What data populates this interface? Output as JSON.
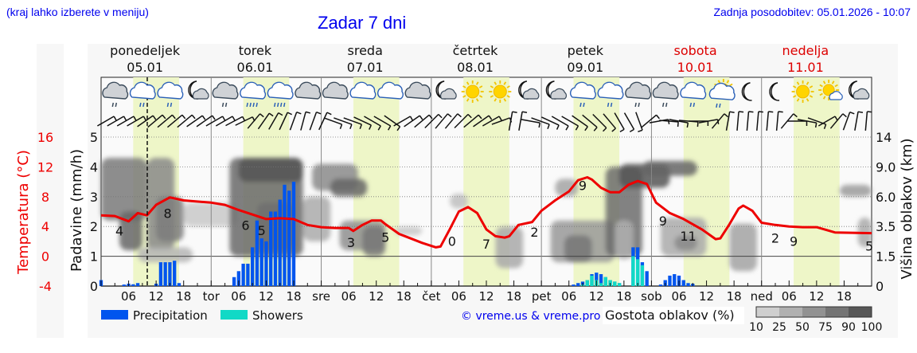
{
  "header": {
    "region_hint": "(kraj lahko izberete v meniju)",
    "title": "Zadar 7 dni",
    "last_update": "Zadnja posodobitev: 05.01.2026 - 10:07"
  },
  "days": [
    {
      "name": "ponedeljek",
      "date": "05.01",
      "short": "",
      "weekend": false
    },
    {
      "name": "torek",
      "date": "06.01",
      "short": "tor",
      "weekend": false
    },
    {
      "name": "sreda",
      "date": "07.01",
      "short": "sre",
      "weekend": false
    },
    {
      "name": "četrtek",
      "date": "08.01",
      "short": "čet",
      "weekend": false
    },
    {
      "name": "petek",
      "date": "09.01",
      "short": "pet",
      "weekend": false
    },
    {
      "name": "sobota",
      "date": "10.01",
      "short": "sob",
      "weekend": true
    },
    {
      "name": "nedelja",
      "date": "11.01",
      "short": "ned",
      "weekend": true
    }
  ],
  "hour_ticks": [
    "06",
    "12",
    "18"
  ],
  "weather_icons": [
    "cloud-rain-light",
    "cloud-rain-light-blue",
    "cloud-rain-light-blue",
    "moon-cloud",
    "cloud-rain-light",
    "cloud-rain-heavy-blue",
    "cloud-rain-heavy-blue",
    "cloud",
    "cloud",
    "cloud-blue",
    "cloud-blue",
    "cloud",
    "moon-cloud",
    "sun",
    "sun",
    "moon-cloud",
    "moon-cloud-small",
    "cloud-rain-light-blue",
    "cloud-rain-light-blue",
    "cloud-rain-light",
    "cloud-rain-light",
    "cloud-rain-light-blue",
    "sun-cloud-rain",
    "moon",
    "moon",
    "sun",
    "sun-cloud-small",
    "moon-cloud"
  ],
  "axes": {
    "left_temp_label": "Temperatura (°C)",
    "left_temp_ticks": [
      "16",
      "12",
      "8",
      "4",
      "0",
      "-4"
    ],
    "left_precip_label": "Padavine (mm/h)",
    "left_precip_ticks": [
      "5",
      "4",
      "3",
      "2",
      "1",
      "0"
    ],
    "right_label": "Višina oblakov (km)",
    "right_ticks": [
      "14",
      "9.0",
      "6.0",
      "3.5",
      "1.5",
      "0"
    ]
  },
  "legend": {
    "precipitation": "Precipitation",
    "showers": "Showers",
    "credit": "© vreme.us & vreme.pro",
    "cloud_density_title": "Gostota oblakov (%)",
    "cloud_density_ticks": [
      "10",
      "25",
      "50",
      "75",
      "90",
      "100"
    ]
  },
  "colors": {
    "precipitation": "#0055ee",
    "showers": "#11d9c6",
    "temperature": "#ee0000",
    "daylight": "#eef6c8",
    "title_blue": "#0000ee",
    "weekend_red": "#dd0000"
  },
  "chart_data": {
    "type": "line+bar",
    "title": "Zadar 7 dni",
    "x_range_hours": [
      0,
      168
    ],
    "now_marker_hour": 10.1,
    "temperature": {
      "unit": "°C",
      "ylim": [
        -4,
        16
      ],
      "points": [
        [
          0,
          5.5
        ],
        [
          3,
          5.4
        ],
        [
          6,
          4.7
        ],
        [
          8,
          5.8
        ],
        [
          10,
          5.5
        ],
        [
          12,
          6.9
        ],
        [
          15,
          7.9
        ],
        [
          18,
          7.5
        ],
        [
          24,
          7.2
        ],
        [
          27,
          6.9
        ],
        [
          30,
          6.2
        ],
        [
          33,
          5.6
        ],
        [
          36,
          5.0
        ],
        [
          39,
          5.1
        ],
        [
          42,
          5.0
        ],
        [
          45,
          4.2
        ],
        [
          48,
          3.9
        ],
        [
          51,
          3.8
        ],
        [
          54,
          3.8
        ],
        [
          55,
          3.4
        ],
        [
          57,
          4.2
        ],
        [
          59,
          4.8
        ],
        [
          61,
          4.8
        ],
        [
          62,
          4.3
        ],
        [
          65,
          3.0
        ],
        [
          70,
          1.8
        ],
        [
          73,
          1.2
        ],
        [
          74,
          1.3
        ],
        [
          76,
          3.6
        ],
        [
          78,
          6.0
        ],
        [
          80,
          6.6
        ],
        [
          82,
          5.8
        ],
        [
          84,
          3.6
        ],
        [
          86,
          2.7
        ],
        [
          88,
          2.5
        ],
        [
          89,
          2.7
        ],
        [
          91,
          4.2
        ],
        [
          94,
          4.6
        ],
        [
          96,
          6.1
        ],
        [
          99,
          7.5
        ],
        [
          102,
          8.7
        ],
        [
          104,
          10.2
        ],
        [
          106,
          10.6
        ],
        [
          107,
          10.3
        ],
        [
          109,
          9.2
        ],
        [
          111,
          8.6
        ],
        [
          113,
          8.6
        ],
        [
          115,
          9.6
        ],
        [
          117,
          10.1
        ],
        [
          119,
          9.7
        ],
        [
          121,
          7.2
        ],
        [
          124,
          5.8
        ],
        [
          127,
          5.0
        ],
        [
          131,
          3.6
        ],
        [
          134,
          2.3
        ],
        [
          135,
          2.4
        ],
        [
          137,
          4.3
        ],
        [
          139,
          6.4
        ],
        [
          140,
          6.8
        ],
        [
          142,
          6.1
        ],
        [
          144,
          4.5
        ],
        [
          147,
          4.2
        ],
        [
          150,
          4.0
        ],
        [
          153,
          3.9
        ],
        [
          156,
          3.9
        ],
        [
          160,
          3.2
        ],
        [
          168,
          3.1
        ]
      ],
      "labels": [
        {
          "hour": 4,
          "value": "4"
        },
        {
          "hour": 14.5,
          "value": "8"
        },
        {
          "hour": 31.5,
          "value": "6"
        },
        {
          "hour": 35,
          "value": "5"
        },
        {
          "hour": 54.5,
          "value": "3"
        },
        {
          "hour": 62,
          "value": "5"
        },
        {
          "hour": 76.5,
          "value": "0"
        },
        {
          "hour": 84,
          "value": "7"
        },
        {
          "hour": 94.5,
          "value": "2"
        },
        {
          "hour": 105,
          "value": "9"
        },
        {
          "hour": 122.5,
          "value": "9"
        },
        {
          "hour": 128,
          "value": "11"
        },
        {
          "hour": 147,
          "value": "2"
        },
        {
          "hour": 151,
          "value": "9"
        },
        {
          "hour": 167.5,
          "value": "5"
        }
      ]
    },
    "precipitation": {
      "unit": "mm/h",
      "ylim": [
        0,
        5
      ],
      "bars": [
        {
          "hour": 0,
          "p": 0.2,
          "s": 0
        },
        {
          "hour": 5,
          "p": 0.05,
          "s": 0
        },
        {
          "hour": 6,
          "p": 0.08,
          "s": 0
        },
        {
          "hour": 7,
          "p": 0.06,
          "s": 0
        },
        {
          "hour": 8,
          "p": 0.1,
          "s": 0
        },
        {
          "hour": 12,
          "p": 0.08,
          "s": 0
        },
        {
          "hour": 13,
          "p": 0.8,
          "s": 0
        },
        {
          "hour": 14,
          "p": 0.8,
          "s": 0
        },
        {
          "hour": 15,
          "p": 0.8,
          "s": 0
        },
        {
          "hour": 16,
          "p": 0.85,
          "s": 0
        },
        {
          "hour": 17,
          "p": 0.1,
          "s": 0
        },
        {
          "hour": 29,
          "p": 0.3,
          "s": 0
        },
        {
          "hour": 30,
          "p": 0.5,
          "s": 0
        },
        {
          "hour": 31,
          "p": 0.75,
          "s": 0
        },
        {
          "hour": 32,
          "p": 0.75,
          "s": 0
        },
        {
          "hour": 33,
          "p": 1.3,
          "s": 0
        },
        {
          "hour": 34,
          "p": 2.2,
          "s": 0
        },
        {
          "hour": 35,
          "p": 1.6,
          "s": 0
        },
        {
          "hour": 36,
          "p": 1.5,
          "s": 0
        },
        {
          "hour": 37,
          "p": 2.5,
          "s": 0
        },
        {
          "hour": 38,
          "p": 2.5,
          "s": 0
        },
        {
          "hour": 39,
          "p": 2.9,
          "s": 0
        },
        {
          "hour": 40,
          "p": 3.4,
          "s": 0
        },
        {
          "hour": 41,
          "p": 3.2,
          "s": 0
        },
        {
          "hour": 42,
          "p": 3.5,
          "s": 0
        },
        {
          "hour": 103,
          "p": 0.05,
          "s": 0
        },
        {
          "hour": 104,
          "p": 0.1,
          "s": 0
        },
        {
          "hour": 105,
          "p": 0.15,
          "s": 0.05
        },
        {
          "hour": 106,
          "p": 0.2,
          "s": 0.2
        },
        {
          "hour": 107,
          "p": 0.4,
          "s": 0.35
        },
        {
          "hour": 108,
          "p": 0.45,
          "s": 0.2
        },
        {
          "hour": 109,
          "p": 0.4,
          "s": 0.1
        },
        {
          "hour": 110,
          "p": 0.3,
          "s": 0.3
        },
        {
          "hour": 111,
          "p": 0.2,
          "s": 0.2
        },
        {
          "hour": 112,
          "p": 0.15,
          "s": 0.15
        },
        {
          "hour": 113,
          "p": 0.1,
          "s": 0.1
        },
        {
          "hour": 116,
          "p": 1.3,
          "s": 1.0
        },
        {
          "hour": 117,
          "p": 1.3,
          "s": 0.9
        },
        {
          "hour": 118,
          "p": 0.8,
          "s": 0.7
        },
        {
          "hour": 119,
          "p": 0.5,
          "s": 0
        },
        {
          "hour": 122,
          "p": 0.05,
          "s": 0
        },
        {
          "hour": 123,
          "p": 0.2,
          "s": 0
        },
        {
          "hour": 124,
          "p": 0.35,
          "s": 0
        },
        {
          "hour": 125,
          "p": 0.4,
          "s": 0
        },
        {
          "hour": 126,
          "p": 0.35,
          "s": 0
        },
        {
          "hour": 127,
          "p": 0.2,
          "s": 0
        },
        {
          "hour": 128,
          "p": 0.1,
          "s": 0
        },
        {
          "hour": 129,
          "p": 0.08,
          "s": 0
        }
      ]
    },
    "cloud_height_km_ticks": [
      0,
      1.5,
      3.5,
      6.0,
      9.0,
      14
    ],
    "cloud_density_levels": [
      10,
      25,
      50,
      75,
      90,
      100
    ],
    "xlabel": "",
    "ylabel_left": "Padavine (mm/h)",
    "ylabel_right": "Višina oblakov (km)",
    "grid": "dotted horizontal at 2,3,4,5; solid at 1"
  }
}
